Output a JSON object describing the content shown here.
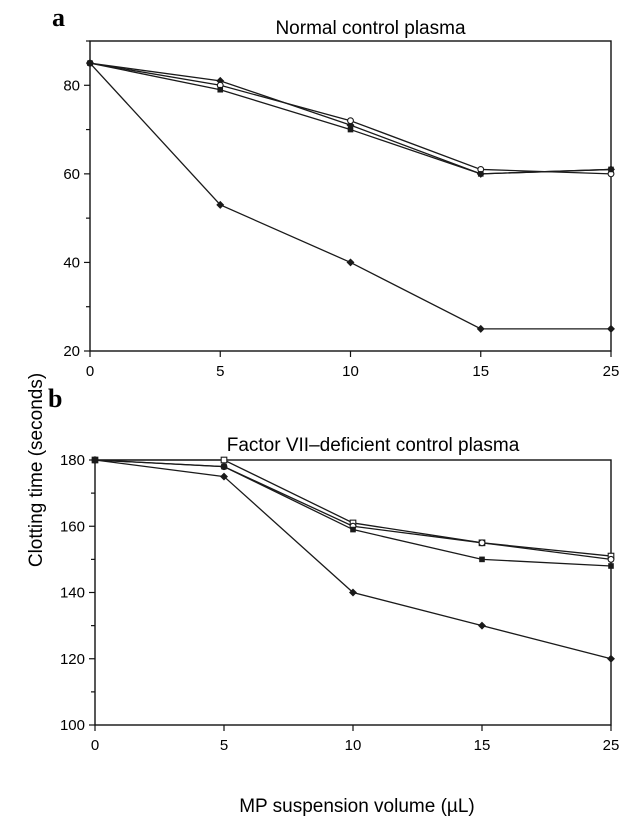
{
  "figure": {
    "ylabel": "Clotting time (seconds)",
    "xlabel": "MP suspension volume (µL)"
  },
  "chart_data": [
    {
      "type": "line",
      "panel_label": "a",
      "title": "Normal control plasma",
      "x": [
        0,
        5,
        10,
        15,
        25
      ],
      "xlim": [
        0,
        25
      ],
      "ylim": [
        20,
        90
      ],
      "yticks": [
        20,
        40,
        60,
        80
      ],
      "grid": false,
      "series": [
        {
          "marker": "filled-diamond",
          "values": [
            85,
            81,
            71,
            60,
            61
          ],
          "color": "#1a1a1a"
        },
        {
          "marker": "open-circle",
          "values": [
            85,
            80,
            72,
            61,
            60
          ],
          "color": "#1a1a1a"
        },
        {
          "marker": "filled-square",
          "values": [
            85,
            79,
            70,
            60,
            61
          ],
          "color": "#1a1a1a"
        },
        {
          "marker": "filled-diamond",
          "values": [
            85,
            53,
            40,
            25,
            25
          ],
          "color": "#1a1a1a"
        }
      ]
    },
    {
      "type": "line",
      "panel_label": "b",
      "title": "Factor VII–deficient control plasma",
      "x": [
        0,
        5,
        10,
        15,
        25
      ],
      "xlim": [
        0,
        25
      ],
      "ylim": [
        100,
        180
      ],
      "yticks": [
        100,
        120,
        140,
        160,
        180
      ],
      "grid": false,
      "series": [
        {
          "marker": "open-square",
          "values": [
            180,
            180,
            161,
            155,
            151
          ],
          "color": "#1a1a1a"
        },
        {
          "marker": "open-circle",
          "values": [
            180,
            178,
            160,
            155,
            150
          ],
          "color": "#1a1a1a"
        },
        {
          "marker": "filled-square",
          "values": [
            180,
            178,
            159,
            150,
            148
          ],
          "color": "#1a1a1a"
        },
        {
          "marker": "filled-diamond",
          "values": [
            180,
            175,
            140,
            130,
            120
          ],
          "color": "#1a1a1a"
        }
      ]
    }
  ]
}
